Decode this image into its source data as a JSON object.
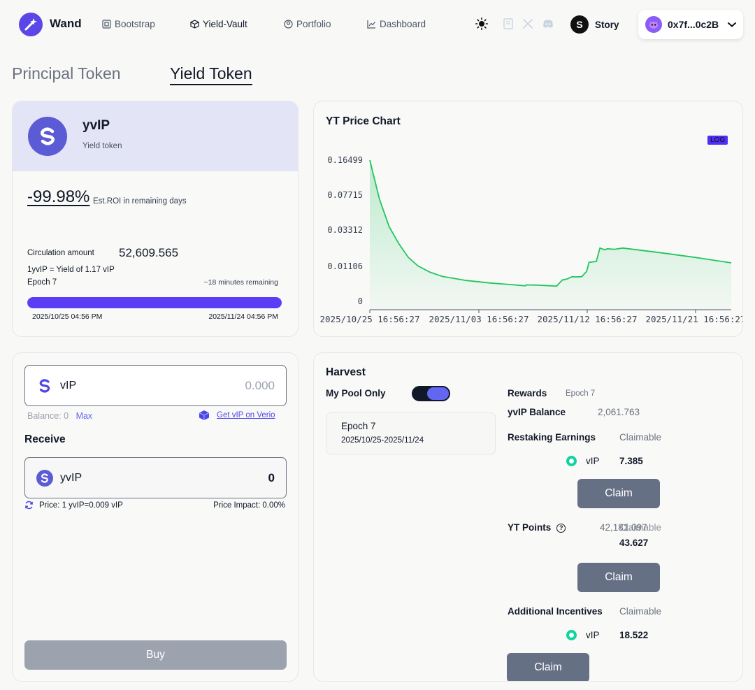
{
  "nav": {
    "brand": "Wand",
    "links": [
      "Bootstrap",
      "Yield-Vault",
      "Portfolio",
      "Dashboard"
    ],
    "network": "Story",
    "network_logo_letter": "S",
    "wallet": "0x7f...0c2B"
  },
  "tabs": {
    "principal": "Principal Token",
    "yield": "Yield Token"
  },
  "token": {
    "name": "yvIP",
    "subtitle": "Yield token",
    "roi": "-99.98%",
    "roi_label": "Est.ROI in remaining days",
    "circ_label": "Circulation amount",
    "circ_value": "52,609.565",
    "ratio": "1yvIP = Yield of 1.17 vIP",
    "epoch": "Epoch 7",
    "remaining": "~18 minutes remaining",
    "progress": 0.999,
    "start_date": "2025/10/25 04:56 PM",
    "end_date": "2025/11/24 04:56 PM"
  },
  "chart": {
    "title": "YT Price Chart",
    "log_label": "LOG"
  },
  "chart_data": {
    "type": "area",
    "title": "YT Price Chart",
    "scale": "log",
    "y_ticks": [
      "0.16499",
      "0.07715",
      "0.03312",
      "0.01106",
      "0"
    ],
    "x_ticks": [
      "2025/10/25 16:56:27",
      "2025/11/03 16:56:27",
      "2025/11/12 16:56:27",
      "2025/11/21 16:56:27"
    ],
    "x": [
      0,
      0.8,
      1.6,
      2.4,
      3.2,
      4.0,
      5.0,
      6.0,
      8.0,
      10.0,
      12.0,
      12.9,
      13.0,
      14.0,
      15.5,
      16.0,
      16.1,
      16.4,
      16.8,
      17.0,
      17.6,
      18.0,
      18.2,
      18.8,
      19.1,
      19.5,
      19.7,
      20.3,
      21.0,
      24.0,
      27.0,
      30.0
    ],
    "x_start": "2025/10/25 16:56:27",
    "x_unit": "days",
    "y": [
      0.16499,
      0.07,
      0.036,
      0.022,
      0.0145,
      0.0112,
      0.0092,
      0.0079,
      0.0066,
      0.0058,
      0.0052,
      0.0049,
      0.0052,
      0.0051,
      0.0048,
      0.0068,
      0.0068,
      0.0071,
      0.0078,
      0.0077,
      0.0078,
      0.0095,
      0.0125,
      0.0128,
      0.0192,
      0.0182,
      0.0188,
      0.0185,
      0.0192,
      0.0168,
      0.0145,
      0.0123
    ]
  },
  "swap": {
    "input_symbol": "vIP",
    "input_placeholder": "0.000",
    "balance": "Balance: 0",
    "max": "Max",
    "verio_link": "Get vIP on Verio",
    "receive_label": "Receive",
    "output_symbol": "yvIP",
    "output_value": "0",
    "price": "Price: 1 yvIP=0.009 vIP",
    "impact": "Price Impact: 0.00%",
    "buy": "Buy"
  },
  "harvest": {
    "title": "Harvest",
    "my_pool_only": "My Pool Only",
    "epoch": "Epoch 7",
    "epoch_range": "2025/10/25-2025/11/24",
    "rewards_label": "Rewards",
    "rewards_epoch": "Epoch 7",
    "balance_label": "yvIP Balance",
    "balance_value": "2,061.763",
    "restaking_label": "Restaking Earnings",
    "claimable": "Claimable",
    "restaking_token": "vIP",
    "restaking_value": "7.385",
    "claim": "Claim",
    "yt_points_label": "YT Points",
    "yt_points_hidden": "42,181.097",
    "yt_points_claimable": "Claimable",
    "yt_points_value": "43.627",
    "additional_label": "Additional Incentives",
    "additional_token": "vIP",
    "additional_value": "18.522"
  }
}
